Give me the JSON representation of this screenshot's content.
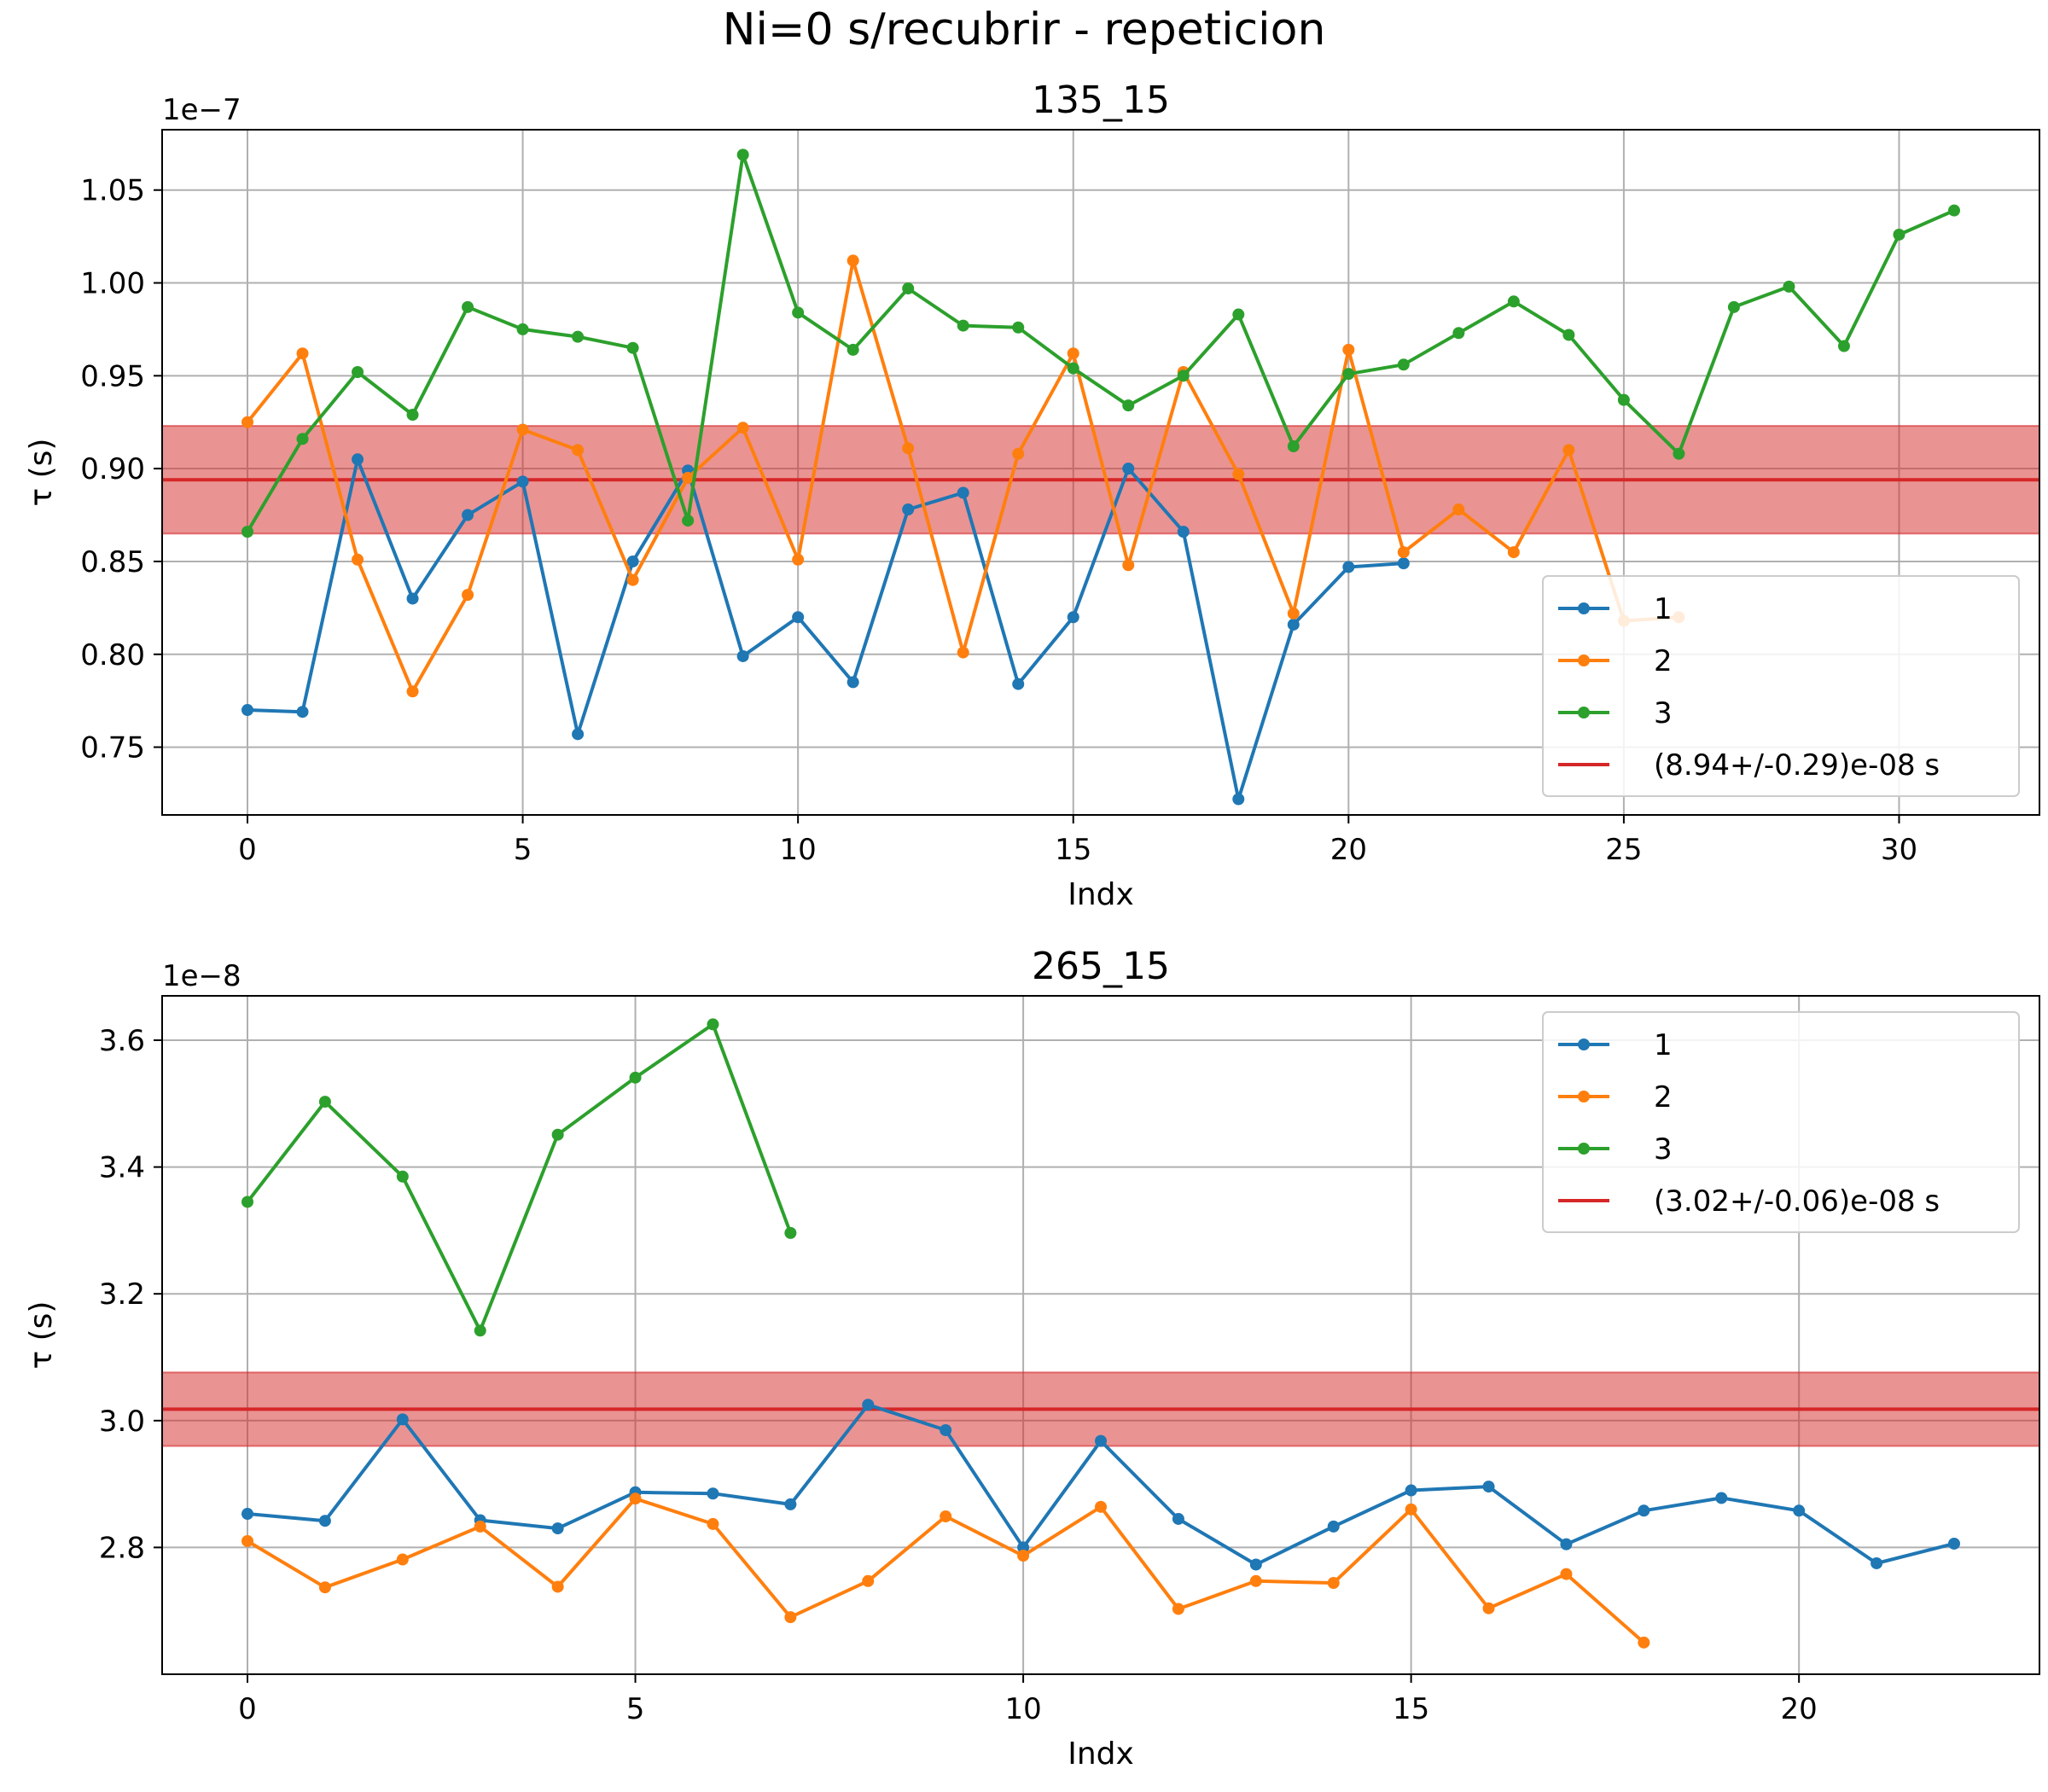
{
  "suptitle": "Ni=0 s/recubrir - repeticion",
  "chart_data": [
    {
      "type": "line",
      "title": "135_15",
      "xlabel": "Indx",
      "ylabel": "τ (s)",
      "offset_label": "1e−7",
      "xlim": [
        -1.55,
        32.55
      ],
      "ylim": [
        0.7135,
        1.0825
      ],
      "xticks": [
        0,
        5,
        10,
        15,
        20,
        25,
        30
      ],
      "yticks": [
        0.75,
        0.8,
        0.85,
        0.9,
        0.95,
        1.0,
        1.05
      ],
      "ytick_labels": [
        "0.75",
        "0.80",
        "0.85",
        "0.90",
        "0.95",
        "1.00",
        "1.05"
      ],
      "grid": true,
      "legend_position": "lower-right",
      "series": [
        {
          "name": "1",
          "color": "#1f77b4",
          "values": [
            0.77,
            0.769,
            0.905,
            0.83,
            0.875,
            0.893,
            0.757,
            0.85,
            0.899,
            0.799,
            0.82,
            0.785,
            0.878,
            0.887,
            0.784,
            0.82,
            0.9,
            0.866,
            0.722,
            0.816,
            0.847,
            0.849
          ]
        },
        {
          "name": "2",
          "color": "#ff7f0e",
          "values": [
            0.925,
            0.962,
            0.851,
            0.78,
            0.832,
            0.921,
            0.91,
            0.84,
            0.895,
            0.922,
            0.851,
            1.012,
            0.911,
            0.801,
            0.908,
            0.962,
            0.848,
            0.952,
            0.897,
            0.822,
            0.964,
            0.855,
            0.878,
            0.855,
            0.91,
            0.818,
            0.82
          ]
        },
        {
          "name": "3",
          "color": "#2ca02c",
          "values": [
            0.866,
            0.916,
            0.952,
            0.929,
            0.987,
            0.975,
            0.971,
            0.965,
            0.872,
            1.069,
            0.984,
            0.964,
            0.997,
            0.977,
            0.976,
            0.954,
            0.934,
            0.95,
            0.983,
            0.912,
            0.951,
            0.956,
            0.973,
            0.99,
            0.972,
            0.937,
            0.908,
            0.987,
            0.998,
            0.966,
            1.026,
            1.039
          ]
        }
      ],
      "mean": {
        "label": "(8.94+/-0.29)e-08 s",
        "value": 0.894,
        "err": 0.029,
        "color": "#d62728"
      }
    },
    {
      "type": "line",
      "title": "265_15",
      "xlabel": "Indx",
      "ylabel": "τ (s)",
      "offset_label": "1e−8",
      "xlim": [
        -1.1,
        23.1
      ],
      "ylim": [
        2.6,
        3.67
      ],
      "xticks": [
        0,
        5,
        10,
        15,
        20
      ],
      "yticks": [
        2.8,
        3.0,
        3.2,
        3.4,
        3.6
      ],
      "ytick_labels": [
        "2.8",
        "3.0",
        "3.2",
        "3.4",
        "3.6"
      ],
      "grid": true,
      "legend_position": "upper-right",
      "series": [
        {
          "name": "1",
          "color": "#1f77b4",
          "values": [
            2.853,
            2.842,
            3.002,
            2.843,
            2.83,
            2.887,
            2.885,
            2.868,
            3.025,
            2.985,
            2.8,
            2.968,
            2.845,
            2.773,
            2.833,
            2.89,
            2.896,
            2.805,
            2.858,
            2.878,
            2.858,
            2.775,
            2.806
          ]
        },
        {
          "name": "2",
          "color": "#ff7f0e",
          "values": [
            2.81,
            2.737,
            2.781,
            2.833,
            2.738,
            2.877,
            2.837,
            2.69,
            2.747,
            2.849,
            2.787,
            2.864,
            2.703,
            2.747,
            2.744,
            2.86,
            2.704,
            2.758,
            2.65
          ]
        },
        {
          "name": "3",
          "color": "#2ca02c",
          "values": [
            3.345,
            3.503,
            3.385,
            3.142,
            3.451,
            3.541,
            3.625,
            3.296
          ]
        }
      ],
      "mean": {
        "label": "(3.02+/-0.06)e-08 s",
        "value": 3.018,
        "err": 0.058,
        "color": "#d62728"
      }
    }
  ]
}
